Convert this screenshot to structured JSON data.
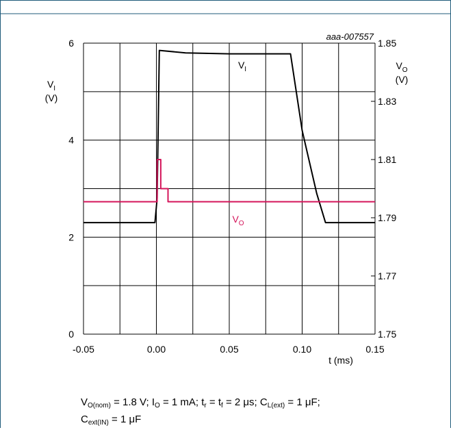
{
  "chart_data": {
    "type": "line",
    "id_label": "aaa-007557",
    "xlabel": "t (ms)",
    "xlim": [
      -0.05,
      0.15
    ],
    "x_ticks": [
      "-0.05",
      "0.00",
      "0.05",
      "0.10",
      "0.15"
    ],
    "left_axis": {
      "label_main": "V",
      "label_sub": "I",
      "unit": "(V)",
      "ylim": [
        0,
        6
      ],
      "ticks": [
        "0",
        "2",
        "4",
        "6"
      ]
    },
    "right_axis": {
      "label_main": "V",
      "label_sub": "O",
      "unit": "(V)",
      "ylim": [
        1.75,
        1.85
      ],
      "ticks": [
        "1.75",
        "1.77",
        "1.79",
        "1.81",
        "1.83",
        "1.85"
      ]
    },
    "grid": true,
    "series": [
      {
        "name_main": "V",
        "name_sub": "I",
        "axis": "left",
        "color": "#000000",
        "x": [
          -0.05,
          -0.001,
          0.0005,
          0.002,
          0.02,
          0.05,
          0.08,
          0.092,
          0.1,
          0.11,
          0.116,
          0.12,
          0.15
        ],
        "y": [
          2.3,
          2.3,
          2.8,
          5.85,
          5.8,
          5.78,
          5.78,
          5.78,
          4.2,
          2.9,
          2.3,
          2.3,
          2.3
        ]
      },
      {
        "name_main": "V",
        "name_sub": "O",
        "axis": "right",
        "color": "#d4145a",
        "x": [
          -0.05,
          0.0005,
          0.0005,
          0.003,
          0.003,
          0.008,
          0.008,
          0.15
        ],
        "y": [
          1.7955,
          1.7955,
          1.81,
          1.81,
          1.8,
          1.8,
          1.7955,
          1.7955
        ]
      }
    ],
    "caption": {
      "line1": [
        [
          "V",
          ""
        ],
        [
          "O(nom)",
          "sub"
        ],
        [
          " = 1.8 V; I",
          ""
        ],
        [
          "O",
          "sub"
        ],
        [
          " = 1 mA; t",
          ""
        ],
        [
          "r",
          "sub"
        ],
        [
          " = t",
          ""
        ],
        [
          "f",
          "sub"
        ],
        [
          " = 2 μs; C",
          ""
        ],
        [
          "L(ext)",
          "sub"
        ],
        [
          " = 1 μF;",
          ""
        ]
      ],
      "line2": [
        [
          "C",
          ""
        ],
        [
          "ext(IN)",
          "sub"
        ],
        [
          " = 1 μF",
          ""
        ]
      ]
    }
  }
}
